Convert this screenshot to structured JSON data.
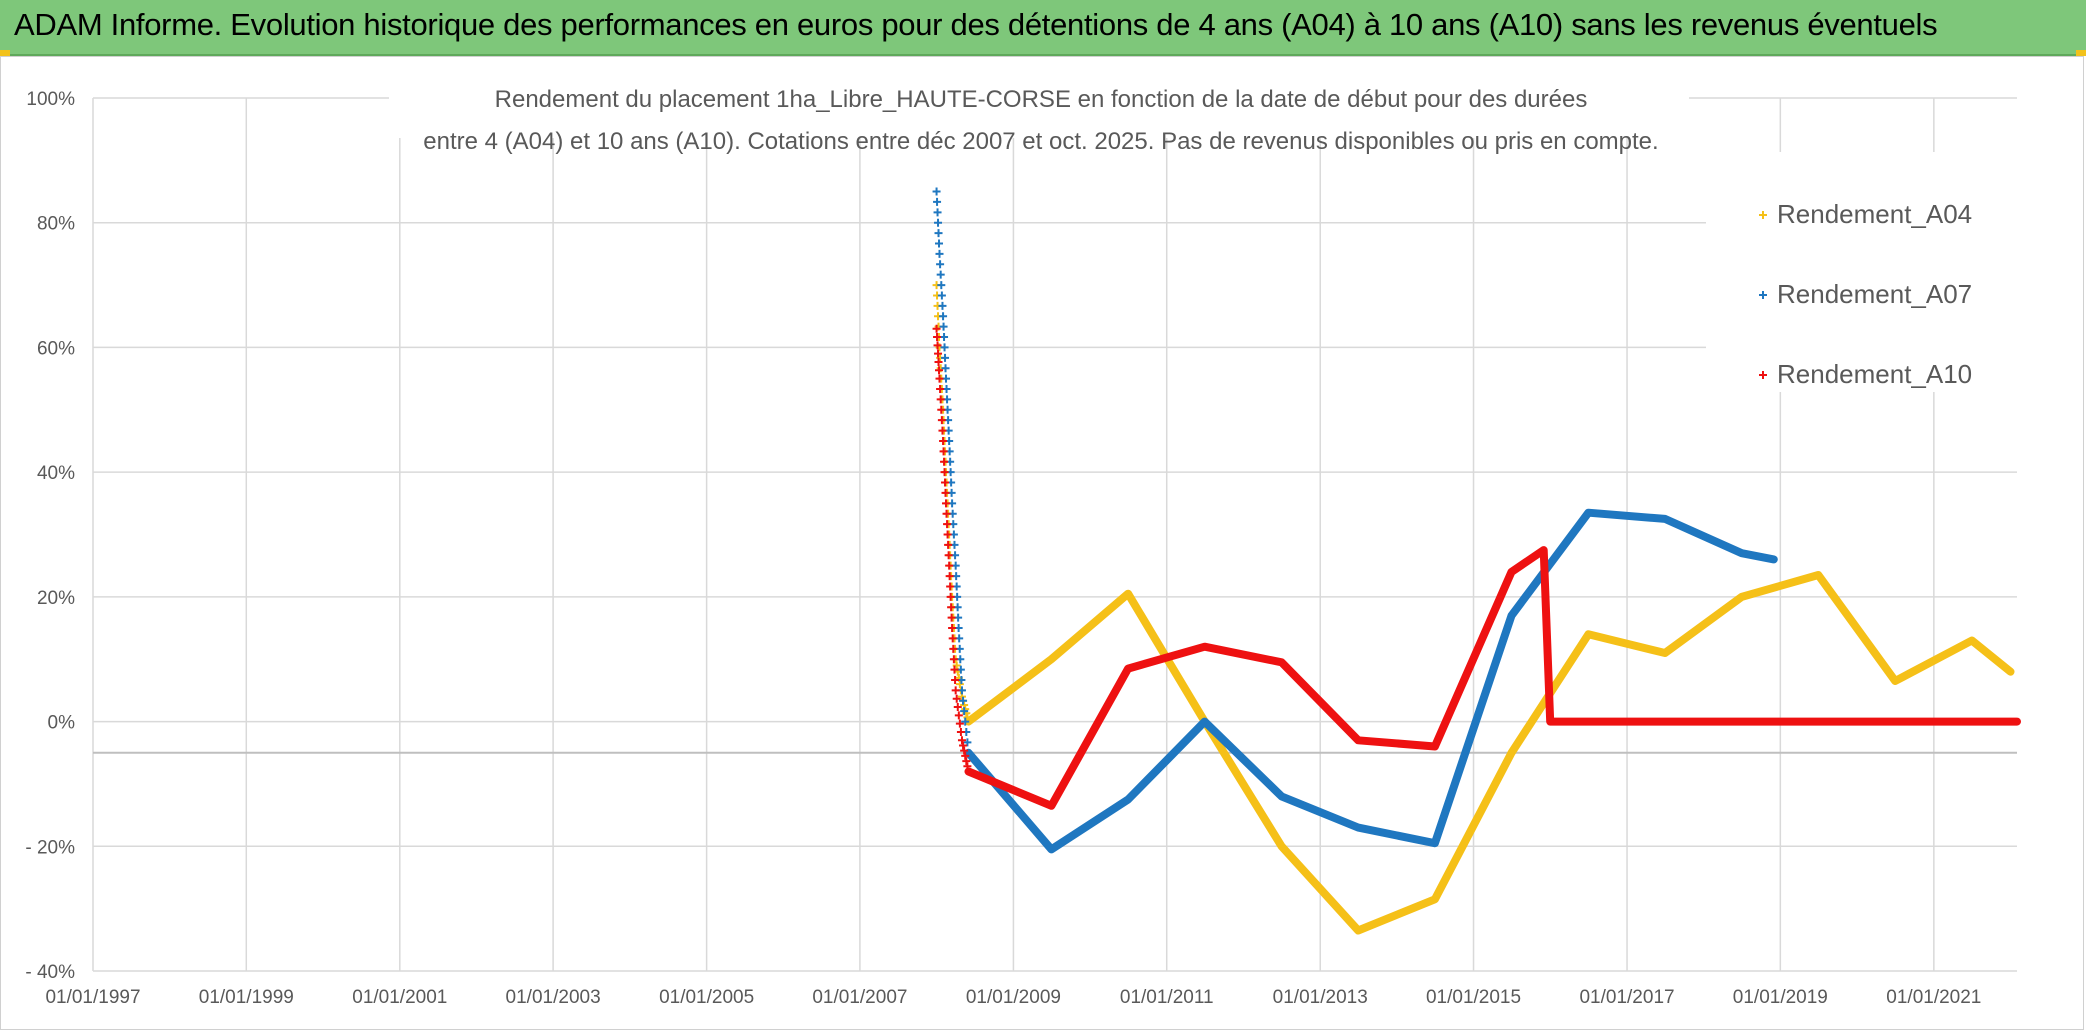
{
  "banner": {
    "title": "ADAM Informe. Evolution historique des performances en euros pour des détentions de 4 ans (A04) à 10 ans (A10) sans les revenus éventuels",
    "background": "#7ec77a"
  },
  "chart_data": {
    "type": "scatter",
    "title_lines": [
      "Rendement du placement 1ha_Libre_HAUTE-CORSE en fonction de la date de début pour des durées",
      "entre 4 (A04) et 10 ans (A10). Cotations entre déc 2007 et oct. 2025. Pas de revenus disponibles ou pris en compte."
    ],
    "xlabel": "",
    "ylabel": "",
    "x_type": "date",
    "xlim": [
      "1997-01-01",
      "2022-02-01"
    ],
    "ylim": [
      -0.4,
      1.0
    ],
    "x_ticks": [
      "1997-01-01",
      "1999-01-01",
      "2001-01-01",
      "2003-01-01",
      "2005-01-01",
      "2007-01-01",
      "2009-01-01",
      "2011-01-01",
      "2013-01-01",
      "2015-01-01",
      "2017-01-01",
      "2019-01-01",
      "2021-01-01"
    ],
    "x_tick_labels": [
      "01/01/1997",
      "01/01/1999",
      "01/01/2001",
      "01/01/2003",
      "01/01/2005",
      "01/01/2007",
      "01/01/2009",
      "01/01/2011",
      "01/01/2013",
      "01/01/2015",
      "01/01/2017",
      "01/01/2019",
      "01/01/2021"
    ],
    "y_ticks": [
      1.0,
      0.8,
      0.6,
      0.4,
      0.2,
      0.0,
      -0.2,
      -0.4
    ],
    "y_tick_labels": [
      "100%",
      "80%",
      "60%",
      "40%",
      "20%",
      "0%",
      "- 20%",
      "- 40%"
    ],
    "grid": true,
    "legend_position": "top-right",
    "marker": "+",
    "series": [
      {
        "name": "Rendement_A04",
        "color": "#f5c018",
        "points": [
          [
            "2008-01-01",
            0.7
          ],
          [
            "2008-01-15",
            0.6
          ],
          [
            "2008-02-01",
            0.5
          ],
          [
            "2008-02-15",
            0.4
          ],
          [
            "2008-03-01",
            0.3
          ],
          [
            "2008-03-15",
            0.2
          ],
          [
            "2008-04-01",
            0.1
          ],
          [
            "2008-05-01",
            0.04
          ],
          [
            "2008-06-01",
            0.0
          ],
          [
            "2009-07-01",
            0.1
          ],
          [
            "2010-07-01",
            0.205
          ],
          [
            "2011-07-01",
            0.0
          ],
          [
            "2012-07-01",
            -0.2
          ],
          [
            "2013-07-01",
            -0.335
          ],
          [
            "2014-07-01",
            -0.285
          ],
          [
            "2015-07-01",
            -0.05
          ],
          [
            "2016-07-01",
            0.14
          ],
          [
            "2017-07-01",
            0.11
          ],
          [
            "2018-07-01",
            0.2
          ],
          [
            "2019-07-01",
            0.235
          ],
          [
            "2020-07-01",
            0.065
          ],
          [
            "2021-07-01",
            0.13
          ],
          [
            "2022-01-01",
            0.08
          ]
        ]
      },
      {
        "name": "Rendement_A07",
        "color": "#1f77c0",
        "points": [
          [
            "2008-01-01",
            0.85
          ],
          [
            "2008-01-15",
            0.75
          ],
          [
            "2008-02-01",
            0.65
          ],
          [
            "2008-02-15",
            0.55
          ],
          [
            "2008-03-01",
            0.45
          ],
          [
            "2008-03-15",
            0.35
          ],
          [
            "2008-04-01",
            0.25
          ],
          [
            "2008-04-15",
            0.15
          ],
          [
            "2008-05-01",
            0.05
          ],
          [
            "2008-06-01",
            -0.05
          ],
          [
            "2009-07-01",
            -0.205
          ],
          [
            "2010-07-01",
            -0.125
          ],
          [
            "2011-07-01",
            0.0
          ],
          [
            "2012-07-01",
            -0.12
          ],
          [
            "2013-07-01",
            -0.17
          ],
          [
            "2014-07-01",
            -0.195
          ],
          [
            "2015-07-01",
            0.17
          ],
          [
            "2016-07-01",
            0.335
          ],
          [
            "2017-07-01",
            0.325
          ],
          [
            "2018-07-01",
            0.27
          ],
          [
            "2018-12-01",
            0.26
          ]
        ]
      },
      {
        "name": "Rendement_A10",
        "color": "#ee1111",
        "points": [
          [
            "2008-01-01",
            0.63
          ],
          [
            "2008-01-15",
            0.55
          ],
          [
            "2008-02-01",
            0.45
          ],
          [
            "2008-02-15",
            0.35
          ],
          [
            "2008-03-01",
            0.25
          ],
          [
            "2008-03-15",
            0.15
          ],
          [
            "2008-04-01",
            0.05
          ],
          [
            "2008-05-01",
            -0.03
          ],
          [
            "2008-06-01",
            -0.08
          ],
          [
            "2009-07-01",
            -0.135
          ],
          [
            "2010-07-01",
            0.085
          ],
          [
            "2011-07-01",
            0.12
          ],
          [
            "2012-07-01",
            0.095
          ],
          [
            "2013-07-01",
            -0.03
          ],
          [
            "2014-07-01",
            -0.04
          ],
          [
            "2015-07-01",
            0.24
          ],
          [
            "2015-12-01",
            0.275
          ],
          [
            "2016-01-01",
            0.0
          ],
          [
            "2022-02-01",
            0.0
          ]
        ]
      }
    ]
  }
}
